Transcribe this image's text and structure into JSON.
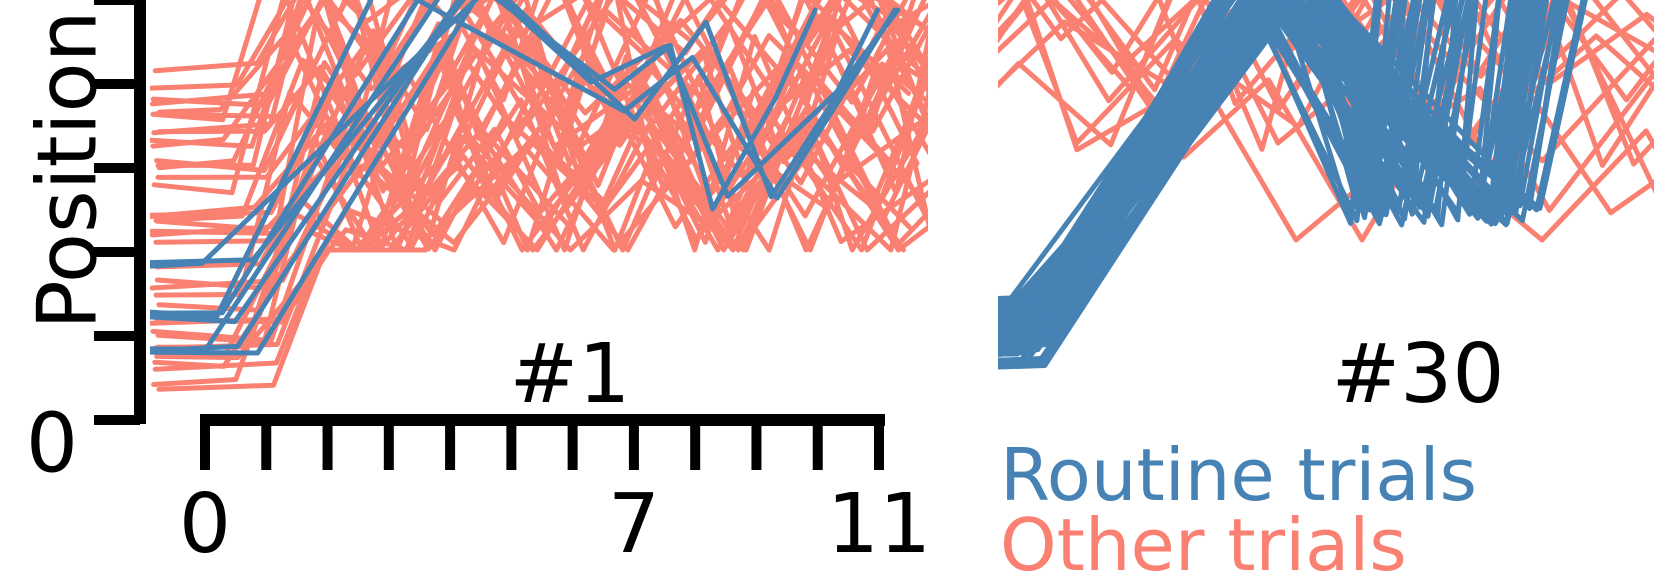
{
  "colors": {
    "routine": "#4682b4",
    "other": "#fa8072",
    "axis": "#000000"
  },
  "legend": {
    "routine_label": "Routine trials",
    "other_label": "Other trials"
  },
  "chart_data": [
    {
      "type": "line",
      "panel_title": "#1",
      "ylabel": "Position",
      "y_tick_labels": [
        "0"
      ],
      "x_ticks": [
        0,
        1,
        2,
        3,
        4,
        5,
        6,
        7,
        8,
        9,
        10,
        11
      ],
      "x_tick_labels": [
        "0",
        "7",
        "11"
      ],
      "x_tick_label_values": [
        0,
        7,
        11
      ],
      "xlim": [
        0,
        11
      ],
      "y_ticks": [
        0,
        1,
        2,
        3,
        4,
        5
      ],
      "grid": false,
      "series": [
        {
          "group": "routine",
          "count": 8
        },
        {
          "group": "other",
          "count": 40
        }
      ]
    },
    {
      "type": "line",
      "panel_title": "#30",
      "grid": false,
      "series": [
        {
          "group": "routine",
          "count": 60
        },
        {
          "group": "other",
          "count": 14
        }
      ]
    }
  ]
}
